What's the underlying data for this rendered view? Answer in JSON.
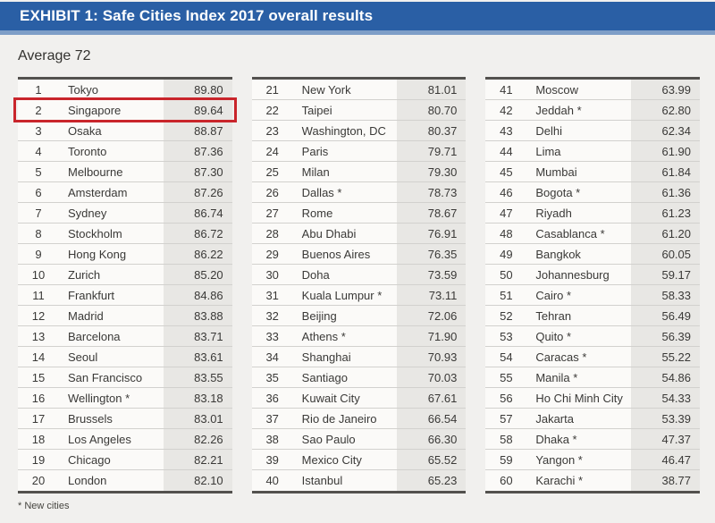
{
  "header": {
    "title": "EXHIBIT 1: Safe Cities Index 2017 overall results"
  },
  "average_label": "Average 72",
  "footnote": "* New cities",
  "highlight": {
    "rank": 2,
    "city": "Singapore"
  },
  "colors": {
    "header_bg": "#2a5fa5",
    "header_strip": "#7e9ec7",
    "page_bg": "#f1f0ee",
    "row_bg": "#fbfaf8",
    "score_bg": "#e8e7e4",
    "text": "#3a3937",
    "thick_border": "#53514e",
    "separator": "#d2d1ce",
    "highlight_red": "#c9252b"
  },
  "tables": [
    {
      "rows": [
        {
          "rank": "1",
          "city": "Tokyo",
          "score": "89.80"
        },
        {
          "rank": "2",
          "city": "Singapore",
          "score": "89.64",
          "highlighted": true
        },
        {
          "rank": "3",
          "city": "Osaka",
          "score": "88.87"
        },
        {
          "rank": "4",
          "city": "Toronto",
          "score": "87.36"
        },
        {
          "rank": "5",
          "city": "Melbourne",
          "score": "87.30"
        },
        {
          "rank": "6",
          "city": "Amsterdam",
          "score": "87.26"
        },
        {
          "rank": "7",
          "city": "Sydney",
          "score": "86.74"
        },
        {
          "rank": "8",
          "city": "Stockholm",
          "score": "86.72"
        },
        {
          "rank": "9",
          "city": "Hong Kong",
          "score": "86.22"
        },
        {
          "rank": "10",
          "city": "Zurich",
          "score": "85.20"
        },
        {
          "rank": "11",
          "city": "Frankfurt",
          "score": "84.86"
        },
        {
          "rank": "12",
          "city": "Madrid",
          "score": "83.88"
        },
        {
          "rank": "13",
          "city": "Barcelona",
          "score": "83.71"
        },
        {
          "rank": "14",
          "city": "Seoul",
          "score": "83.61"
        },
        {
          "rank": "15",
          "city": "San Francisco",
          "score": "83.55"
        },
        {
          "rank": "16",
          "city": "Wellington *",
          "score": "83.18"
        },
        {
          "rank": "17",
          "city": "Brussels",
          "score": "83.01"
        },
        {
          "rank": "18",
          "city": "Los Angeles",
          "score": "82.26"
        },
        {
          "rank": "19",
          "city": "Chicago",
          "score": "82.21"
        },
        {
          "rank": "20",
          "city": "London",
          "score": "82.10"
        }
      ]
    },
    {
      "rows": [
        {
          "rank": "21",
          "city": "New York",
          "score": "81.01"
        },
        {
          "rank": "22",
          "city": "Taipei",
          "score": "80.70"
        },
        {
          "rank": "23",
          "city": "Washington, DC",
          "score": "80.37"
        },
        {
          "rank": "24",
          "city": "Paris",
          "score": "79.71"
        },
        {
          "rank": "25",
          "city": "Milan",
          "score": "79.30"
        },
        {
          "rank": "26",
          "city": "Dallas *",
          "score": "78.73"
        },
        {
          "rank": "27",
          "city": "Rome",
          "score": "78.67"
        },
        {
          "rank": "28",
          "city": "Abu Dhabi",
          "score": "76.91"
        },
        {
          "rank": "29",
          "city": "Buenos Aires",
          "score": "76.35"
        },
        {
          "rank": "30",
          "city": "Doha",
          "score": "73.59"
        },
        {
          "rank": "31",
          "city": "Kuala Lumpur *",
          "score": "73.11"
        },
        {
          "rank": "32",
          "city": "Beijing",
          "score": "72.06"
        },
        {
          "rank": "33",
          "city": "Athens *",
          "score": "71.90"
        },
        {
          "rank": "34",
          "city": "Shanghai",
          "score": "70.93"
        },
        {
          "rank": "35",
          "city": "Santiago",
          "score": "70.03"
        },
        {
          "rank": "36",
          "city": "Kuwait City",
          "score": "67.61"
        },
        {
          "rank": "37",
          "city": "Rio de Janeiro",
          "score": "66.54"
        },
        {
          "rank": "38",
          "city": "Sao Paulo",
          "score": "66.30"
        },
        {
          "rank": "39",
          "city": "Mexico City",
          "score": "65.52"
        },
        {
          "rank": "40",
          "city": "Istanbul",
          "score": "65.23"
        }
      ]
    },
    {
      "rows": [
        {
          "rank": "41",
          "city": "Moscow",
          "score": "63.99"
        },
        {
          "rank": "42",
          "city": "Jeddah *",
          "score": "62.80"
        },
        {
          "rank": "43",
          "city": "Delhi",
          "score": "62.34"
        },
        {
          "rank": "44",
          "city": "Lima",
          "score": "61.90"
        },
        {
          "rank": "45",
          "city": "Mumbai",
          "score": "61.84"
        },
        {
          "rank": "46",
          "city": "Bogota *",
          "score": "61.36"
        },
        {
          "rank": "47",
          "city": "Riyadh",
          "score": "61.23"
        },
        {
          "rank": "48",
          "city": "Casablanca *",
          "score": "61.20"
        },
        {
          "rank": "49",
          "city": "Bangkok",
          "score": "60.05"
        },
        {
          "rank": "50",
          "city": "Johannesburg",
          "score": "59.17"
        },
        {
          "rank": "51",
          "city": "Cairo *",
          "score": "58.33"
        },
        {
          "rank": "52",
          "city": "Tehran",
          "score": "56.49"
        },
        {
          "rank": "53",
          "city": "Quito *",
          "score": "56.39"
        },
        {
          "rank": "54",
          "city": "Caracas *",
          "score": "55.22"
        },
        {
          "rank": "55",
          "city": "Manila *",
          "score": "54.86"
        },
        {
          "rank": "56",
          "city": "Ho Chi Minh City",
          "score": "54.33"
        },
        {
          "rank": "57",
          "city": "Jakarta",
          "score": "53.39"
        },
        {
          "rank": "58",
          "city": "Dhaka *",
          "score": "47.37"
        },
        {
          "rank": "59",
          "city": "Yangon *",
          "score": "46.47"
        },
        {
          "rank": "60",
          "city": "Karachi *",
          "score": "38.77"
        }
      ]
    }
  ]
}
